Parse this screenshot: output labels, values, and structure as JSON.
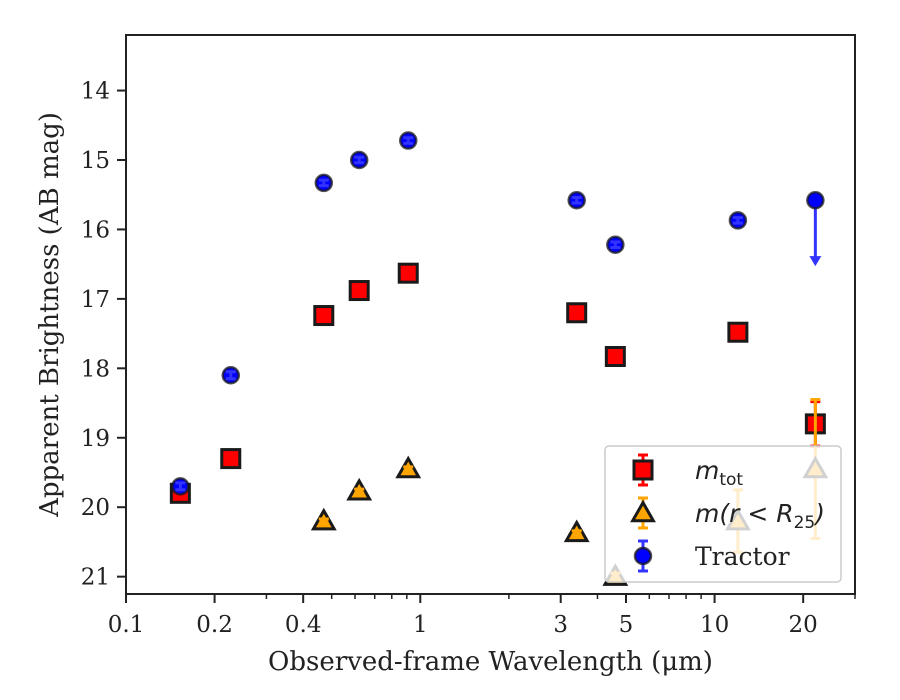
{
  "chart_data": {
    "type": "scatter",
    "title": "",
    "xlabel": "Observed-frame Wavelength (μm)",
    "ylabel": "Apparent Brightness (AB mag)",
    "xscale": "log",
    "xlim": [
      0.1,
      30
    ],
    "ylim": [
      21.25,
      13.2
    ],
    "y_inverted": true,
    "x_ticks": [
      0.1,
      0.2,
      0.4,
      1,
      3,
      5,
      10,
      20
    ],
    "x_tick_labels": [
      "0.1",
      "0.2",
      "0.4",
      "1",
      "3",
      "5",
      "10",
      "20"
    ],
    "y_ticks": [
      14,
      15,
      16,
      17,
      18,
      19,
      20,
      21
    ],
    "y_tick_labels": [
      "14",
      "15",
      "16",
      "17",
      "18",
      "19",
      "20",
      "21"
    ],
    "legend_position": "lower-right",
    "series": [
      {
        "name_main": "m",
        "name_sub": "tot",
        "marker": "square",
        "color": "#ff0000",
        "edge_color": "#1a1a1a",
        "error_color": "#ff0000",
        "points": [
          {
            "x": 0.153,
            "y": 19.8,
            "err": 0.05
          },
          {
            "x": 0.227,
            "y": 19.3,
            "err": 0.03
          },
          {
            "x": 0.47,
            "y": 17.24,
            "err": 0.03
          },
          {
            "x": 0.62,
            "y": 16.88,
            "err": 0.03
          },
          {
            "x": 0.91,
            "y": 16.63,
            "err": 0.03
          },
          {
            "x": 3.4,
            "y": 17.2,
            "err": 0.03
          },
          {
            "x": 4.6,
            "y": 17.83,
            "err": 0.03
          },
          {
            "x": 12.0,
            "y": 17.48,
            "err": 0.03
          },
          {
            "x": 22.0,
            "y": 18.8,
            "err": 0.32
          }
        ]
      },
      {
        "name_main": "m(r < R",
        "name_sub": "25",
        "name_tail": ")",
        "marker": "triangle",
        "color": "#ffa500",
        "edge_color": "#1a1a1a",
        "error_color": "#ffa500",
        "points": [
          {
            "x": 0.47,
            "y": 20.2,
            "err": 0.03
          },
          {
            "x": 0.62,
            "y": 19.77,
            "err": 0.03
          },
          {
            "x": 0.91,
            "y": 19.45,
            "err": 0.03
          },
          {
            "x": 3.4,
            "y": 20.37,
            "err": 0.03
          },
          {
            "x": 4.6,
            "y": 21.0,
            "err": 0.05
          },
          {
            "x": 12.0,
            "y": 20.2,
            "err": 0.45
          },
          {
            "x": 22.0,
            "y": 19.45,
            "err": 1.0
          }
        ]
      },
      {
        "name_main": "Tractor",
        "marker": "circle",
        "color": "#0000ff",
        "edge_color": "#1a1a1a",
        "error_color": "#3333ff",
        "points": [
          {
            "x": 0.153,
            "y": 19.7,
            "err": 0.05
          },
          {
            "x": 0.227,
            "y": 18.1,
            "err": 0.05
          },
          {
            "x": 0.47,
            "y": 15.33,
            "err": 0.04
          },
          {
            "x": 0.62,
            "y": 15.0,
            "err": 0.04
          },
          {
            "x": 0.91,
            "y": 14.72,
            "err": 0.04
          },
          {
            "x": 3.4,
            "y": 15.58,
            "err": 0.04
          },
          {
            "x": 4.6,
            "y": 16.22,
            "err": 0.04
          },
          {
            "x": 12.0,
            "y": 15.87,
            "err": 0.04
          },
          {
            "x": 22.0,
            "y": 15.58,
            "upper_limit": true,
            "arrow_to": 16.5
          }
        ]
      }
    ]
  }
}
